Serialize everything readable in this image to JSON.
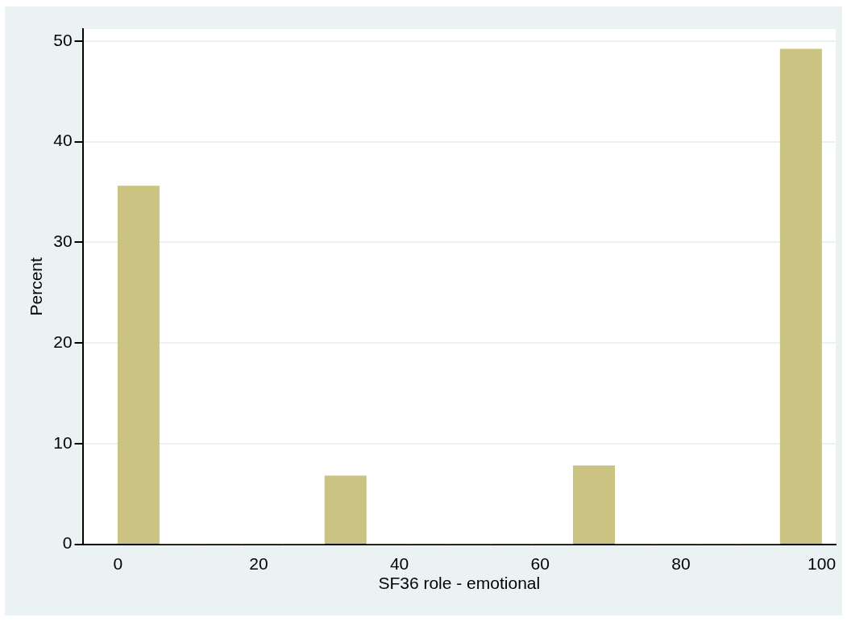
{
  "chart_data": {
    "type": "histogram",
    "xlabel": "SF36 role - emotional",
    "ylabel": "Percent",
    "bins": [
      0,
      5.88,
      11.76,
      17.65,
      23.53,
      29.41,
      35.29,
      41.18,
      47.06,
      52.94,
      58.82,
      64.71,
      70.59,
      76.47,
      82.35,
      88.24,
      94.12,
      100
    ],
    "values": [
      35.6,
      0,
      0,
      0,
      0,
      6.8,
      0,
      0,
      0,
      0,
      0,
      7.8,
      0,
      0,
      0,
      0,
      49.2
    ],
    "color": "#cbc382",
    "xlim": [
      -5,
      102
    ],
    "xticks": [
      0,
      20,
      40,
      60,
      80,
      100
    ],
    "ylim": [
      0,
      51.2
    ],
    "yticks": [
      0,
      10,
      20,
      30,
      40,
      50
    ],
    "grid": "y"
  }
}
